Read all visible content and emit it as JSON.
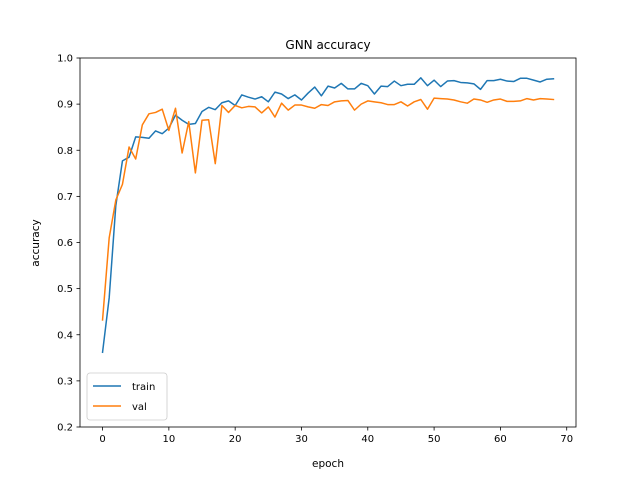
{
  "chart_data": {
    "type": "line",
    "title": "GNN accuracy",
    "xlabel": "epoch",
    "ylabel": "accuracy",
    "xlim": [
      -3.4,
      71.4
    ],
    "ylim": [
      0.2,
      1.0
    ],
    "xticks": [
      0,
      10,
      20,
      30,
      40,
      50,
      60,
      70
    ],
    "yticks": [
      0.2,
      0.3,
      0.4,
      0.5,
      0.6,
      0.7,
      0.8,
      0.9,
      1.0
    ],
    "xtick_labels": [
      "0",
      "10",
      "20",
      "30",
      "40",
      "50",
      "60",
      "70"
    ],
    "ytick_labels": [
      "0.2",
      "0.3",
      "0.4",
      "0.5",
      "0.6",
      "0.7",
      "0.8",
      "0.9",
      "1.0"
    ],
    "grid": false,
    "legend_position": "lower-left",
    "series": [
      {
        "name": "train",
        "color": "#1f77b4",
        "values": [
          0.362,
          0.48,
          0.68,
          0.777,
          0.785,
          0.829,
          0.828,
          0.826,
          0.842,
          0.836,
          0.848,
          0.876,
          0.865,
          0.856,
          0.858,
          0.884,
          0.893,
          0.888,
          0.903,
          0.907,
          0.897,
          0.92,
          0.915,
          0.911,
          0.916,
          0.905,
          0.926,
          0.922,
          0.912,
          0.92,
          0.909,
          0.924,
          0.937,
          0.918,
          0.939,
          0.935,
          0.945,
          0.933,
          0.933,
          0.945,
          0.94,
          0.922,
          0.939,
          0.938,
          0.95,
          0.94,
          0.943,
          0.943,
          0.957,
          0.94,
          0.952,
          0.938,
          0.95,
          0.951,
          0.947,
          0.946,
          0.944,
          0.932,
          0.951,
          0.951,
          0.954,
          0.95,
          0.949,
          0.956,
          0.956,
          0.952,
          0.948,
          0.954,
          0.955
        ]
      },
      {
        "name": "val",
        "color": "#ff7f0e",
        "values": [
          0.432,
          0.61,
          0.692,
          0.726,
          0.807,
          0.781,
          0.855,
          0.879,
          0.882,
          0.889,
          0.843,
          0.891,
          0.794,
          0.862,
          0.751,
          0.865,
          0.866,
          0.771,
          0.897,
          0.882,
          0.897,
          0.892,
          0.895,
          0.894,
          0.881,
          0.894,
          0.872,
          0.902,
          0.887,
          0.898,
          0.898,
          0.894,
          0.891,
          0.899,
          0.897,
          0.905,
          0.907,
          0.908,
          0.887,
          0.9,
          0.907,
          0.905,
          0.903,
          0.899,
          0.899,
          0.905,
          0.896,
          0.905,
          0.91,
          0.889,
          0.913,
          0.912,
          0.911,
          0.909,
          0.905,
          0.902,
          0.911,
          0.909,
          0.904,
          0.909,
          0.911,
          0.906,
          0.906,
          0.907,
          0.912,
          0.909,
          0.912,
          0.911,
          0.91
        ]
      }
    ]
  }
}
